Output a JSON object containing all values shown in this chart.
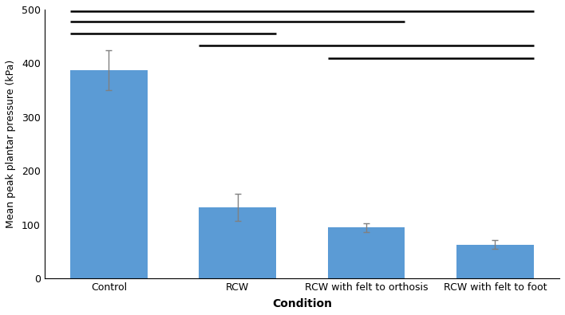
{
  "categories": [
    "Control",
    "RCW",
    "RCW with felt to orthosis",
    "RCW with felt to foot"
  ],
  "values": [
    387,
    132,
    95,
    63
  ],
  "errors": [
    37,
    25,
    8,
    8
  ],
  "bar_color": "#5B9BD5",
  "ylim": [
    0,
    500
  ],
  "yticks": [
    0,
    100,
    200,
    300,
    400,
    500
  ],
  "ylabel": "Mean peak plantar pressure (kPa)",
  "xlabel": "Condition",
  "significance_lines": [
    {
      "x1": 0,
      "x2": 3,
      "y": 497
    },
    {
      "x1": 0,
      "x2": 2,
      "y": 477
    },
    {
      "x1": 0,
      "x2": 1,
      "y": 455
    },
    {
      "x1": 1,
      "x2": 3,
      "y": 433
    },
    {
      "x1": 2,
      "x2": 3,
      "y": 410
    }
  ],
  "bar_width": 0.6,
  "figsize": [
    7.08,
    3.95
  ],
  "dpi": 100,
  "xlim": [
    -0.5,
    3.5
  ]
}
